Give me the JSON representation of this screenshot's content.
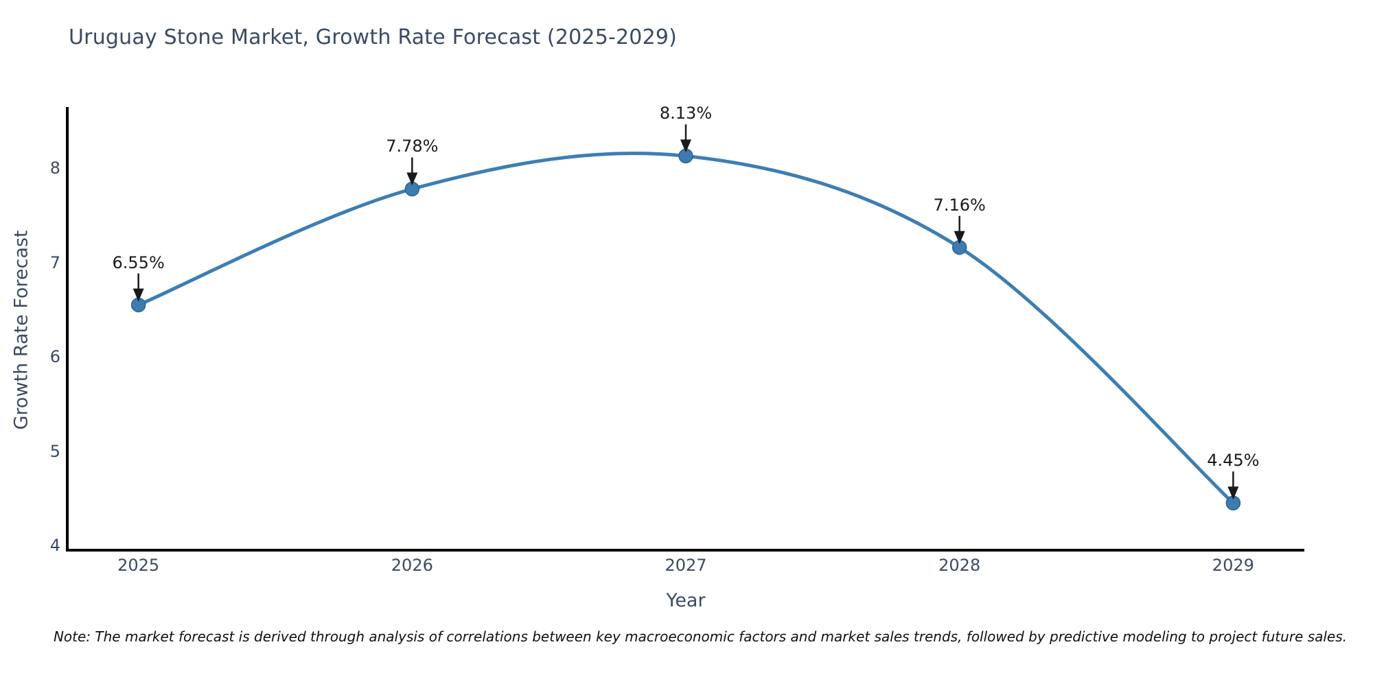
{
  "figure": {
    "note": "Note: The market forecast is derived through analysis of correlations between key macroeconomic factors and market sales trends, followed by predictive modeling to project future sales."
  },
  "chart_data": {
    "type": "line",
    "title": "Uruguay Stone Market, Growth Rate Forecast (2025-2029)",
    "xlabel": "Year",
    "ylabel": "Growth Rate Forecast",
    "x": [
      2025,
      2026,
      2027,
      2028,
      2029
    ],
    "values": [
      6.55,
      7.78,
      8.13,
      7.16,
      4.45
    ],
    "point_labels": [
      "6.55%",
      "7.78%",
      "8.13%",
      "7.16%",
      "4.45%"
    ],
    "xtick_labels": [
      "2025",
      "2026",
      "2027",
      "2028",
      "2029"
    ],
    "ytick_values": [
      4,
      5,
      6,
      7,
      8
    ],
    "ytick_labels": [
      "4",
      "5",
      "6",
      "7",
      "8"
    ],
    "xlim": [
      2024.74,
      2029.26
    ],
    "ylim": [
      3.95,
      8.62
    ],
    "grid": false,
    "legend": "none",
    "curve": "spline",
    "line_color": "#3d7eb3",
    "marker_color": "#3c7cb0",
    "marker_edge_color": "#2d6292",
    "axis_color": "#000000",
    "annotation_color": "#1a1a1a"
  }
}
